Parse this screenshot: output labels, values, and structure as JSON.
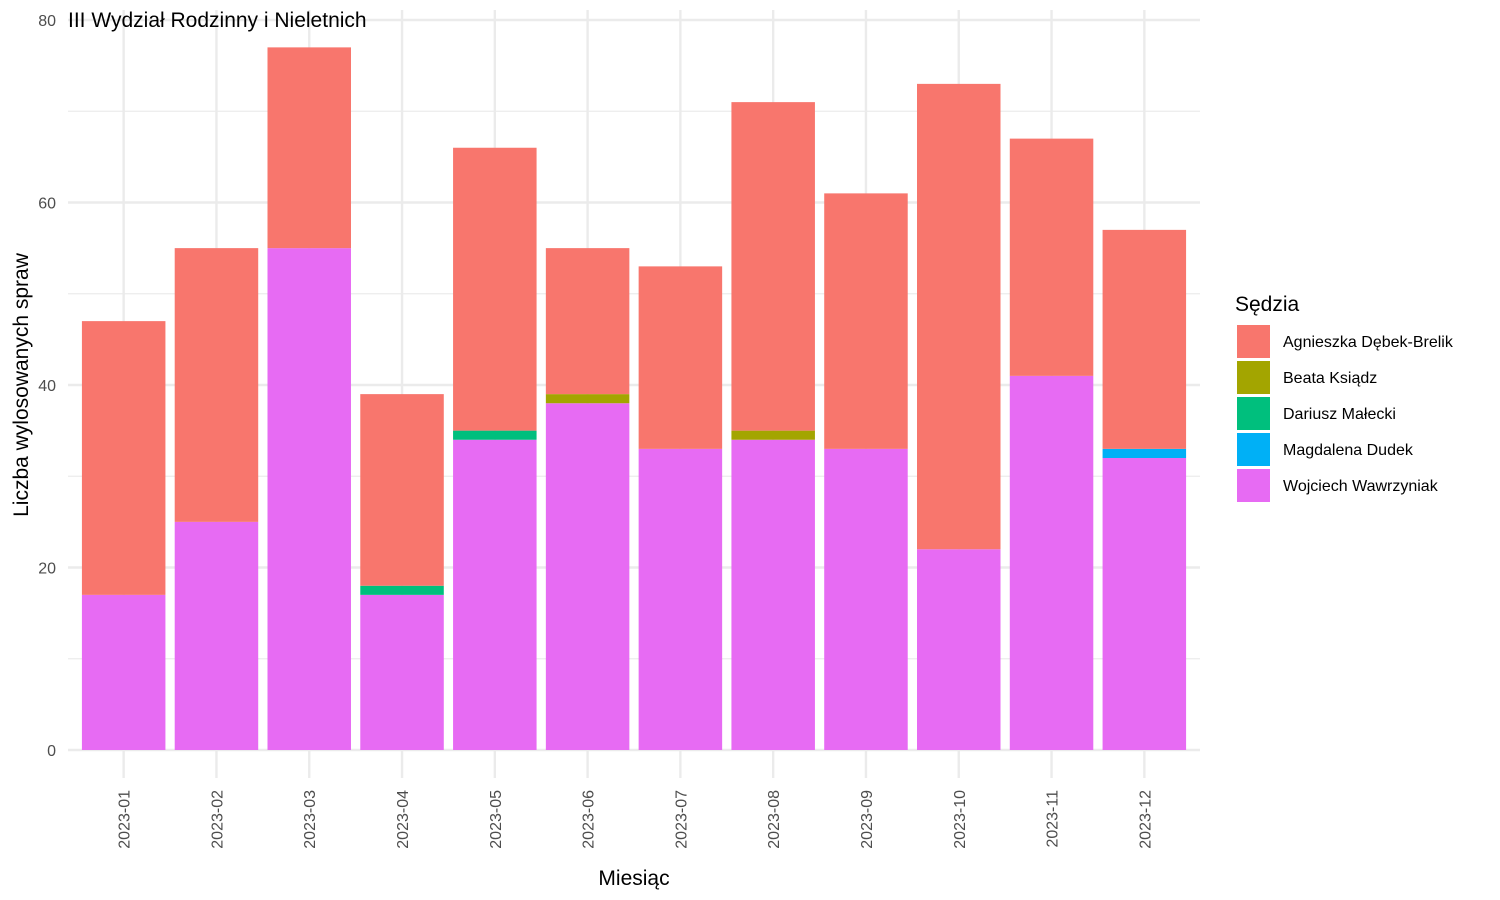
{
  "chart_data": {
    "type": "bar",
    "stacked": true,
    "title": "III Wydział Rodzinny i Nieletnich",
    "xlabel": "Miesiąc",
    "ylabel": "Liczba wylosowanych spraw",
    "ylim": [
      0,
      80
    ],
    "yticks": [
      0,
      20,
      40,
      60,
      80
    ],
    "grid": true,
    "legend": {
      "title": "Sędzia",
      "placement": "right"
    },
    "categories": [
      "2023-01",
      "2023-02",
      "2023-03",
      "2023-04",
      "2023-05",
      "2023-06",
      "2023-07",
      "2023-08",
      "2023-09",
      "2023-10",
      "2023-11",
      "2023-12"
    ],
    "series": [
      {
        "name": "Wojciech Wawrzyniak",
        "color": "#E76BF3",
        "values": [
          17,
          25,
          55,
          17,
          34,
          38,
          33,
          34,
          33,
          22,
          41,
          32
        ]
      },
      {
        "name": "Magdalena Dudek",
        "color": "#00B0F6",
        "values": [
          0,
          0,
          0,
          0,
          0,
          0,
          0,
          0,
          0,
          0,
          0,
          1
        ]
      },
      {
        "name": "Dariusz Małecki",
        "color": "#00BF7D",
        "values": [
          0,
          0,
          0,
          1,
          1,
          0,
          0,
          0,
          0,
          0,
          0,
          0
        ]
      },
      {
        "name": "Beata Ksiądz",
        "color": "#A3A500",
        "values": [
          0,
          0,
          0,
          0,
          0,
          1,
          0,
          1,
          0,
          0,
          0,
          0
        ]
      },
      {
        "name": "Agnieszka Dębek-Brelik",
        "color": "#F8766D",
        "values": [
          30,
          30,
          22,
          21,
          31,
          16,
          20,
          36,
          28,
          51,
          26,
          24
        ]
      }
    ],
    "legend_order": [
      "Agnieszka Dębek-Brelik",
      "Beata Ksiądz",
      "Dariusz Małecki",
      "Magdalena Dudek",
      "Wojciech Wawrzyniak"
    ]
  }
}
